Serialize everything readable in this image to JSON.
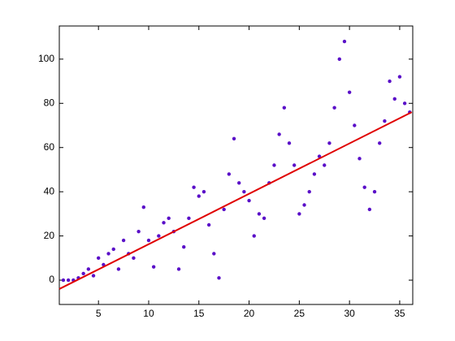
{
  "chart_data": {
    "type": "scatter",
    "x": [
      1.5,
      2,
      2.5,
      3,
      3.5,
      4,
      4.5,
      5,
      5.5,
      6,
      6.5,
      7,
      7.5,
      8,
      8.5,
      9,
      9.5,
      10,
      10.5,
      11,
      11.5,
      12,
      12.5,
      13,
      13.5,
      14,
      14.5,
      15,
      15.5,
      16,
      16.5,
      17,
      17.5,
      18,
      18.5,
      19,
      19.5,
      20,
      20.5,
      21,
      21.5,
      22,
      22.5,
      23,
      23.5,
      24,
      24.5,
      25,
      25.5,
      26,
      26.5,
      27,
      27.5,
      28,
      28.5,
      29,
      29.5,
      30,
      30.5,
      31,
      31.5,
      32,
      32.5,
      33,
      33.5,
      34,
      34.5,
      35,
      35.5,
      36
    ],
    "y": [
      0,
      0,
      0,
      1,
      3,
      5,
      2,
      10,
      7,
      12,
      14,
      5,
      18,
      12,
      10,
      22,
      33,
      18,
      6,
      20,
      26,
      28,
      22,
      5,
      15,
      28,
      42,
      38,
      40,
      25,
      12,
      1,
      32,
      48,
      64,
      44,
      40,
      36,
      20,
      30,
      28,
      44,
      52,
      66,
      78,
      62,
      52,
      30,
      34,
      40,
      48,
      56,
      52,
      62,
      78,
      100,
      108,
      85,
      70,
      55,
      42,
      32,
      40,
      62,
      72,
      90,
      82,
      92,
      80,
      76
    ],
    "color": "#5a0fc8",
    "trend": {
      "x": [
        1.1,
        36.2
      ],
      "y": [
        -4,
        76
      ],
      "color": "#e00000"
    },
    "xlim": [
      1.1,
      36.3
    ],
    "ylim": [
      -11,
      115
    ],
    "xticks": [
      5,
      10,
      15,
      20,
      25,
      30,
      35
    ],
    "yticks": [
      0,
      20,
      40,
      60,
      80,
      100
    ]
  }
}
